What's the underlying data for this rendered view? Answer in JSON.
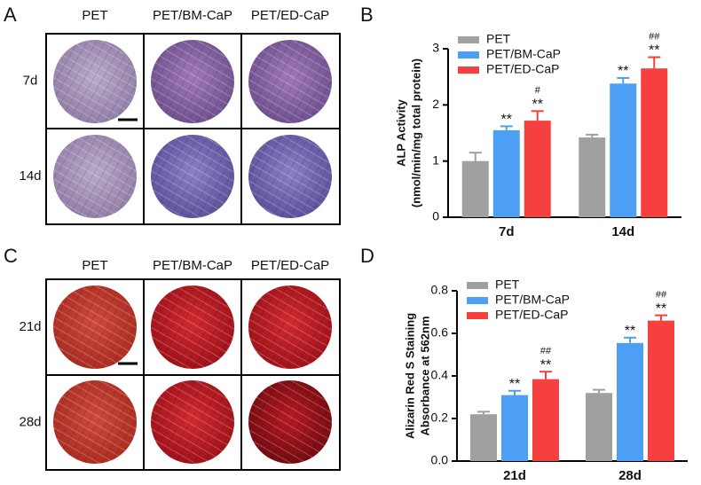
{
  "panels": [
    {
      "label": "A",
      "columns": [
        "PET",
        "PET/BM-CaP",
        "PET/ED-CaP"
      ],
      "rows": [
        "7d",
        "14d"
      ]
    },
    {
      "label": "C",
      "columns": [
        "PET",
        "PET/BM-CaP",
        "PET/ED-CaP"
      ],
      "rows": [
        "21d",
        "28d"
      ]
    }
  ],
  "chart_data": [
    {
      "type": "bar",
      "panel_label": "B",
      "ylabel": [
        "ALP Activity",
        "(nmol/min/mg total protein)"
      ],
      "categories": [
        "7d",
        "14d"
      ],
      "series": [
        {
          "name": "PET",
          "color": "#a0a0a0",
          "values": [
            1.0,
            1.42
          ],
          "errors": [
            0.15,
            0.05
          ]
        },
        {
          "name": "PET/BM-CaP",
          "color": "#4d9ef5",
          "values": [
            1.55,
            2.38
          ],
          "errors": [
            0.07,
            0.1
          ],
          "labels": [
            "**",
            "**"
          ]
        },
        {
          "name": "PET/ED-CaP",
          "color": "#f5403f",
          "values": [
            1.72,
            2.65
          ],
          "errors": [
            0.17,
            0.2
          ],
          "labels": [
            "**",
            "**"
          ],
          "hash_labels": [
            "#",
            "##"
          ]
        }
      ],
      "ylim": [
        0,
        3
      ],
      "yticks": [
        0,
        1,
        2,
        3
      ]
    },
    {
      "type": "bar",
      "panel_label": "D",
      "ylabel": [
        "Alizarin Red S Staining",
        "Absorbance at 562nm"
      ],
      "categories": [
        "21d",
        "28d"
      ],
      "series": [
        {
          "name": "PET",
          "color": "#a0a0a0",
          "values": [
            0.22,
            0.32
          ],
          "errors": [
            0.012,
            0.015
          ]
        },
        {
          "name": "PET/BM-CaP",
          "color": "#4d9ef5",
          "values": [
            0.31,
            0.555
          ],
          "errors": [
            0.02,
            0.025
          ],
          "labels": [
            "**",
            "**"
          ]
        },
        {
          "name": "PET/ED-CaP",
          "color": "#f5403f",
          "values": [
            0.385,
            0.66
          ],
          "errors": [
            0.035,
            0.025
          ],
          "labels": [
            "**",
            "**"
          ],
          "hash_labels": [
            "##",
            "##"
          ]
        }
      ],
      "ylim": [
        0,
        0.8
      ],
      "yticks": [
        {
          "value": 0,
          "label": "0.0"
        },
        0.2,
        0.4,
        0.6,
        0.8
      ]
    }
  ]
}
